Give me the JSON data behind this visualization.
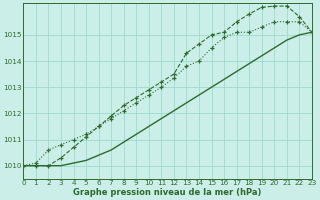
{
  "xlabel": "Graphe pression niveau de la mer (hPa)",
  "xlim": [
    0,
    23
  ],
  "ylim": [
    1009.5,
    1016.2
  ],
  "yticks": [
    1010,
    1011,
    1012,
    1013,
    1014,
    1015
  ],
  "xticks": [
    0,
    1,
    2,
    3,
    4,
    5,
    6,
    7,
    8,
    9,
    10,
    11,
    12,
    13,
    14,
    15,
    16,
    17,
    18,
    19,
    20,
    21,
    22,
    23
  ],
  "bg_color": "#cceee8",
  "grid_color": "#99ddcc",
  "line_color": "#2d6a2d",
  "line_dotted_markers": [
    1010.0,
    1010.1,
    1010.6,
    1010.8,
    1011.0,
    1011.2,
    1011.5,
    1011.8,
    1012.1,
    1012.4,
    1012.7,
    1013.0,
    1013.35,
    1013.8,
    1014.0,
    1014.5,
    1014.9,
    1015.1,
    1015.1,
    1015.3,
    1015.5,
    1015.5,
    1015.5,
    1015.1
  ],
  "line_dash_markers": [
    1010.0,
    1010.0,
    1010.0,
    1010.3,
    1010.7,
    1011.1,
    1011.5,
    1011.9,
    1012.3,
    1012.6,
    1012.9,
    1013.2,
    1013.5,
    1014.3,
    1014.65,
    1015.0,
    1015.1,
    1015.5,
    1015.8,
    1016.05,
    1016.1,
    1016.1,
    1015.7,
    1015.1
  ],
  "line_solid": [
    1010.0,
    1010.0,
    1010.0,
    1010.0,
    1010.1,
    1010.2,
    1010.4,
    1010.6,
    1010.9,
    1011.2,
    1011.5,
    1011.8,
    1012.1,
    1012.4,
    1012.7,
    1013.0,
    1013.3,
    1013.6,
    1013.9,
    1014.2,
    1014.5,
    1014.8,
    1015.0,
    1015.1
  ]
}
